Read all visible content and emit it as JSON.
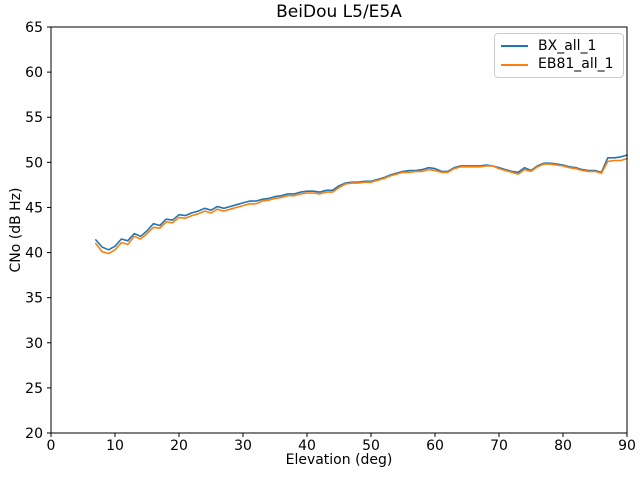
{
  "chart_data": {
    "type": "line",
    "title": "BeiDou L5/E5A",
    "xlabel": "Elevation (deg)",
    "ylabel": "CNo (dB Hz)",
    "xlim": [
      0,
      90
    ],
    "ylim": [
      20,
      65
    ],
    "xticks": [
      0,
      10,
      20,
      30,
      40,
      50,
      60,
      70,
      80,
      90
    ],
    "yticks": [
      20,
      25,
      30,
      35,
      40,
      45,
      50,
      55,
      60,
      65
    ],
    "grid": false,
    "legend_position": "upper right",
    "x": [
      7,
      8,
      9,
      10,
      11,
      12,
      13,
      14,
      15,
      16,
      17,
      18,
      19,
      20,
      21,
      22,
      23,
      24,
      25,
      26,
      27,
      28,
      29,
      30,
      31,
      32,
      33,
      34,
      35,
      36,
      37,
      38,
      39,
      40,
      41,
      42,
      43,
      44,
      45,
      46,
      47,
      48,
      49,
      50,
      51,
      52,
      53,
      54,
      55,
      56,
      57,
      58,
      59,
      60,
      61,
      62,
      63,
      64,
      65,
      66,
      67,
      68,
      69,
      70,
      71,
      72,
      73,
      74,
      75,
      76,
      77,
      78,
      79,
      80,
      81,
      82,
      83,
      84,
      85,
      86,
      87,
      88,
      89,
      90
    ],
    "series": [
      {
        "name": "BX_all_1",
        "color": "#1f77b4",
        "values": [
          41.4,
          40.6,
          40.3,
          40.7,
          41.5,
          41.3,
          42.1,
          41.8,
          42.4,
          43.2,
          43.0,
          43.7,
          43.6,
          44.2,
          44.1,
          44.4,
          44.6,
          44.9,
          44.7,
          45.1,
          44.9,
          45.1,
          45.3,
          45.5,
          45.7,
          45.7,
          45.9,
          46.0,
          46.2,
          46.3,
          46.5,
          46.5,
          46.7,
          46.8,
          46.8,
          46.7,
          46.9,
          46.9,
          47.4,
          47.7,
          47.8,
          47.8,
          47.9,
          47.9,
          48.1,
          48.3,
          48.6,
          48.8,
          49.0,
          49.1,
          49.1,
          49.2,
          49.4,
          49.3,
          49.0,
          49.0,
          49.4,
          49.6,
          49.6,
          49.6,
          49.6,
          49.7,
          49.6,
          49.4,
          49.2,
          49.0,
          48.9,
          49.4,
          49.1,
          49.6,
          49.9,
          49.9,
          49.8,
          49.7,
          49.5,
          49.4,
          49.2,
          49.1,
          49.1,
          48.9,
          50.5,
          50.5,
          50.6,
          50.8
        ]
      },
      {
        "name": "EB81_all_1",
        "color": "#ff7f0e",
        "values": [
          41.0,
          40.1,
          39.9,
          40.3,
          41.1,
          40.9,
          41.8,
          41.5,
          42.1,
          42.8,
          42.7,
          43.4,
          43.3,
          43.9,
          43.8,
          44.1,
          44.3,
          44.6,
          44.4,
          44.8,
          44.6,
          44.8,
          45.0,
          45.2,
          45.4,
          45.4,
          45.7,
          45.8,
          46.0,
          46.1,
          46.3,
          46.3,
          46.5,
          46.6,
          46.6,
          46.5,
          46.7,
          46.7,
          47.2,
          47.6,
          47.7,
          47.7,
          47.8,
          47.8,
          48.0,
          48.2,
          48.5,
          48.7,
          48.9,
          48.9,
          49.0,
          49.0,
          49.2,
          49.1,
          48.9,
          48.9,
          49.3,
          49.5,
          49.5,
          49.5,
          49.5,
          49.6,
          49.6,
          49.3,
          49.1,
          48.9,
          48.7,
          49.2,
          49.0,
          49.5,
          49.8,
          49.8,
          49.7,
          49.6,
          49.4,
          49.3,
          49.1,
          49.0,
          49.0,
          48.8,
          50.1,
          50.2,
          50.2,
          50.4
        ]
      }
    ]
  },
  "axis_colors": {
    "spine": "#000000",
    "tick": "#000000",
    "label": "#000000"
  }
}
